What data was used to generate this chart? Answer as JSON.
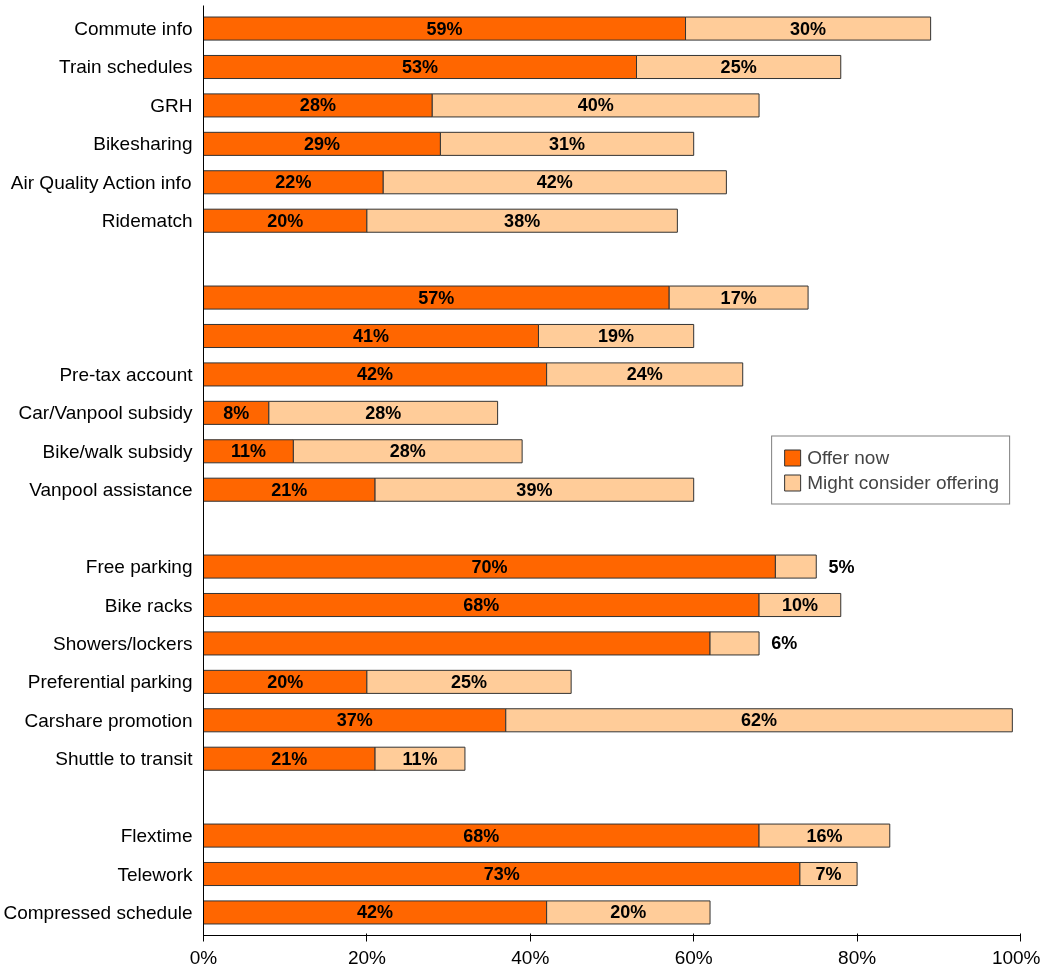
{
  "chart_data": {
    "type": "bar",
    "orientation": "horizontal",
    "stacked": true,
    "categories": [
      "Commute info",
      "Train schedules",
      "GRH",
      "Bikesharing",
      "Air Quality Action info",
      "Ridematch",
      null,
      null,
      null,
      "Pre-tax account",
      "Car/Vanpool subsidy",
      "Bike/walk subsidy",
      "Vanpool assistance",
      null,
      "Free parking",
      "Bike racks",
      "Showers/lockers",
      "Preferential parking",
      "Carshare promotion",
      "Shuttle to transit",
      null,
      "Flextime",
      "Telework",
      "Compressed schedule"
    ],
    "series": [
      {
        "name": "Offer now",
        "color": "#ff6600",
        "values": [
          59,
          53,
          28,
          29,
          22,
          20,
          null,
          57,
          41,
          42,
          8,
          11,
          21,
          null,
          70,
          68,
          62,
          20,
          37,
          21,
          null,
          68,
          73,
          42
        ],
        "value_labels": [
          "59%",
          "53%",
          "28%",
          "29%",
          "22%",
          "20%",
          null,
          "57%",
          "41%",
          "42%",
          "8%",
          "11%",
          "21%",
          null,
          "70%",
          "68%",
          null,
          "20%",
          "37%",
          "21%",
          null,
          "68%",
          "73%",
          "42%"
        ]
      },
      {
        "name": "Might consider offering",
        "color": "#ffcc99",
        "values": [
          30,
          25,
          40,
          31,
          42,
          38,
          null,
          17,
          19,
          24,
          28,
          28,
          39,
          null,
          5,
          10,
          6,
          25,
          62,
          11,
          null,
          16,
          7,
          20
        ],
        "value_labels": [
          "30%",
          "25%",
          "40%",
          "31%",
          "42%",
          "38%",
          null,
          "17%",
          "19%",
          "24%",
          "28%",
          "28%",
          "39%",
          null,
          "5%",
          "10%",
          "6%",
          "25%",
          "62%",
          "11%",
          null,
          "16%",
          "7%",
          "20%"
        ]
      }
    ],
    "xlim": [
      0,
      100
    ],
    "xticks": [
      {
        "value": 0,
        "label": "0%"
      },
      {
        "value": 20,
        "label": "20%"
      },
      {
        "value": 40,
        "label": "40%"
      },
      {
        "value": 60,
        "label": "60%"
      },
      {
        "value": 80,
        "label": "80%"
      },
      {
        "value": 100,
        "label": "100%"
      }
    ],
    "grid": false,
    "legend": "right"
  }
}
